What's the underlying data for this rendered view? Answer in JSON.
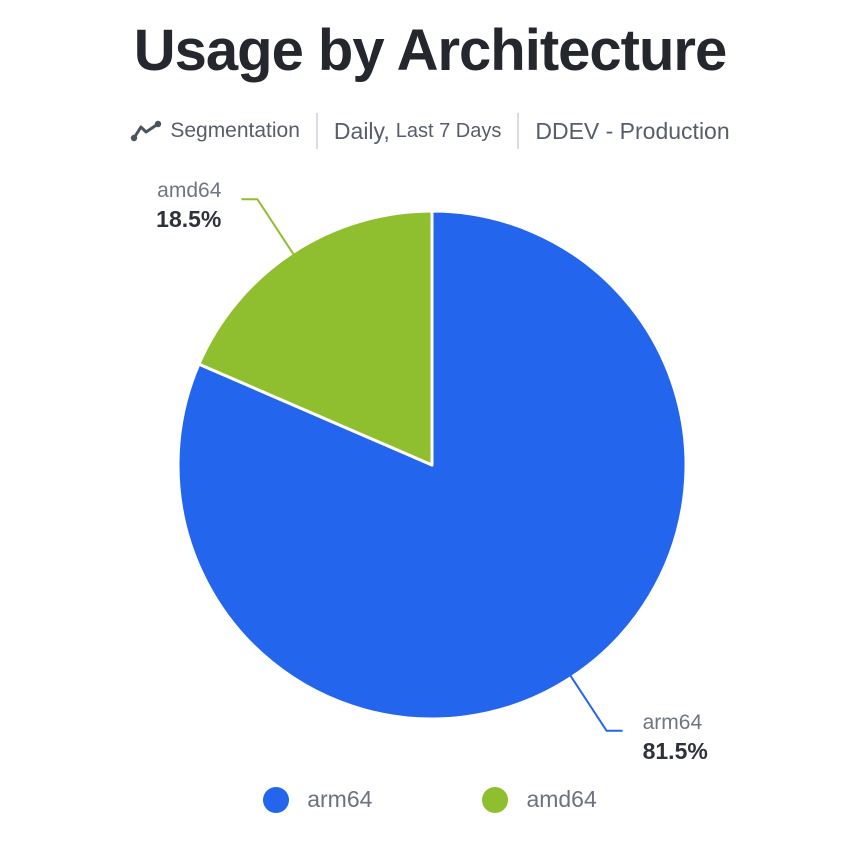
{
  "header": {
    "meta": {
      "metric_label": "Segmentation",
      "period_primary": "Daily,",
      "period_secondary": "Last 7 Days",
      "environment": "DDEV - Production"
    }
  },
  "chart_data": {
    "type": "pie",
    "title": "Usage by Architecture",
    "labels": [
      "arm64",
      "amd64"
    ],
    "values": [
      81.5,
      18.5
    ],
    "display_values": [
      "81.5%",
      "18.5%"
    ],
    "unit": "%",
    "colors": [
      "#2365ec",
      "#8fbe2f"
    ],
    "start_angle": "12 o'clock, clockwise",
    "slice_border_color": "#ffffff",
    "legend_position": "bottom"
  },
  "legend": {
    "items": [
      {
        "label": "arm64",
        "color": "#2365ec"
      },
      {
        "label": "amd64",
        "color": "#8fbe2f"
      }
    ]
  },
  "colors": {
    "title_text": "#24272e",
    "meta_text": "#565d6b",
    "meta_icon": "#4b5260",
    "divider": "#d9dce2",
    "label_name_text": "#6f7683",
    "label_value_text": "#2e323a",
    "legend_text": "#6b7280",
    "background": "#ffffff"
  }
}
